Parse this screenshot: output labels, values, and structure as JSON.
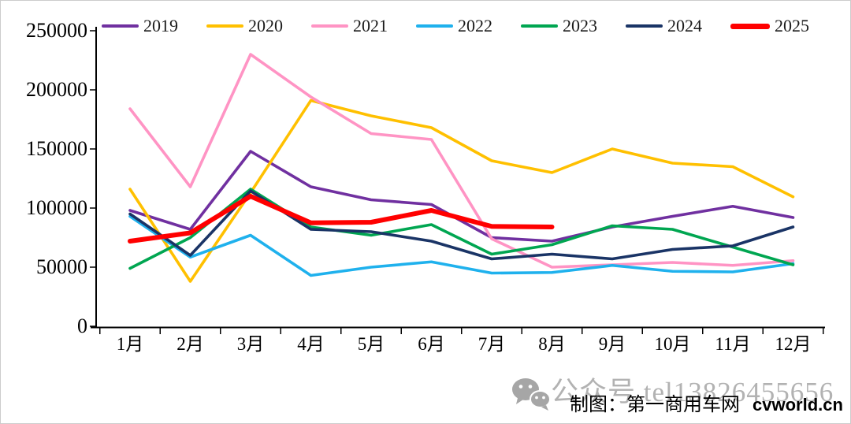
{
  "chart_data": {
    "type": "line",
    "title": "",
    "xlabel": "",
    "ylabel": "",
    "grid": false,
    "legend_position": "top",
    "ylim": [
      0,
      250000
    ],
    "y_ticks": [
      0,
      50000,
      100000,
      150000,
      200000,
      250000
    ],
    "categories": [
      "1月",
      "2月",
      "3月",
      "4月",
      "5月",
      "6月",
      "7月",
      "8月",
      "9月",
      "10月",
      "11月",
      "12月"
    ],
    "series": [
      {
        "name": "2019",
        "color": "#7030A0",
        "width": 3.6,
        "values": [
          98000,
          82000,
          148000,
          118000,
          107000,
          103000,
          75000,
          72000,
          84000,
          93000,
          101500,
          92000
        ]
      },
      {
        "name": "2020",
        "color": "#FFC000",
        "width": 3.6,
        "values": [
          116000,
          38000,
          113000,
          191000,
          178000,
          168000,
          140000,
          130000,
          150000,
          138000,
          135000,
          109500
        ]
      },
      {
        "name": "2021",
        "color": "#FF94C4",
        "width": 3.6,
        "values": [
          184000,
          118000,
          230000,
          194000,
          163000,
          158000,
          74000,
          50000,
          52000,
          54000,
          51500,
          55500
        ]
      },
      {
        "name": "2022",
        "color": "#1FB1ED",
        "width": 3.6,
        "values": [
          93000,
          58500,
          77000,
          43000,
          50000,
          54500,
          45000,
          45500,
          51500,
          46500,
          46000,
          53000
        ]
      },
      {
        "name": "2023",
        "color": "#00A651",
        "width": 3.6,
        "values": [
          49000,
          75000,
          116000,
          84000,
          77000,
          86000,
          61000,
          69000,
          85000,
          82000,
          67000,
          52000
        ]
      },
      {
        "name": "2024",
        "color": "#1A3466",
        "width": 3.6,
        "values": [
          95000,
          60000,
          114500,
          82000,
          80000,
          72000,
          57000,
          61000,
          57000,
          65000,
          68000,
          84000
        ]
      },
      {
        "name": "2025",
        "color": "#FF0000",
        "width": 6,
        "values": [
          72000,
          79000,
          110000,
          87500,
          88000,
          98000,
          84500,
          84000
        ]
      }
    ]
  },
  "watermark": {
    "icon": "wechat-icon",
    "text": "公众号 tel13826455656",
    "color": "#b2b2b2"
  },
  "credit": {
    "maker": "制图：第一商用车网",
    "site": "cvworld.cn"
  }
}
